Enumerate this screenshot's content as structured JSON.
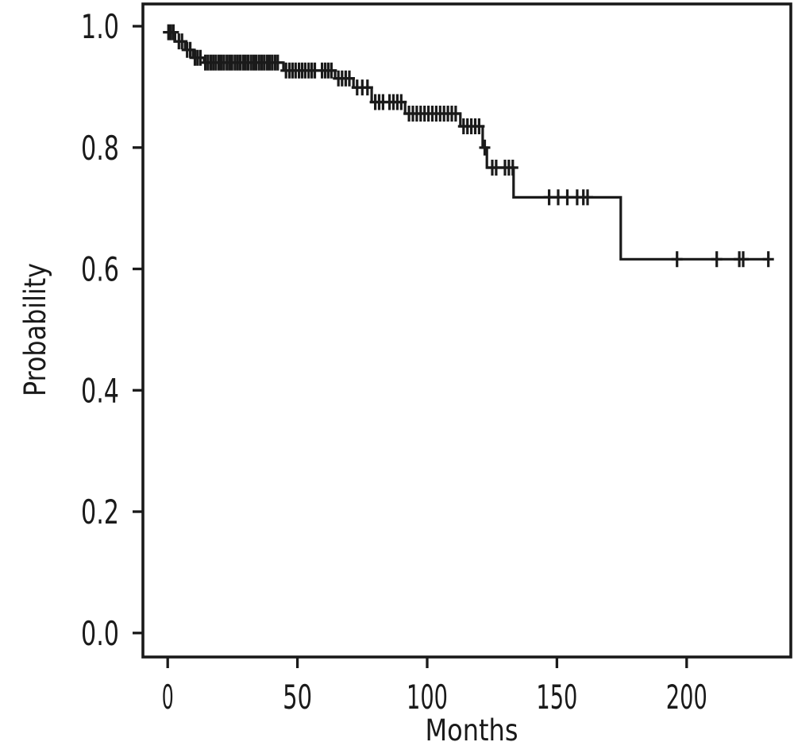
{
  "figure": {
    "background_color": "#ffffff",
    "line_color": "#1a1a1a"
  },
  "chart_data": {
    "type": "line",
    "subtype": "kaplan-meier-step-curve",
    "title": "",
    "xlabel": "Months",
    "ylabel": "Probability",
    "x_ticks": [
      "0",
      "50",
      "100",
      "150",
      "200"
    ],
    "x_tick_values": [
      0,
      50,
      100,
      150,
      200
    ],
    "y_ticks": [
      "0.0",
      "0.2",
      "0.4",
      "0.6",
      "0.8",
      "1.0"
    ],
    "y_tick_values": [
      0.0,
      0.2,
      0.4,
      0.6,
      0.8,
      1.0
    ],
    "xlim": [
      -9.5,
      240
    ],
    "ylim": [
      -0.04,
      1.04
    ],
    "grid": false,
    "legend": "none",
    "series": [
      {
        "name": "survival-probability",
        "steps": [
          [
            0,
            0.99
          ],
          [
            2.8,
            0.975
          ],
          [
            6.7,
            0.961
          ],
          [
            9.8,
            0.948
          ],
          [
            14,
            0.94
          ],
          [
            44.6,
            0.927
          ],
          [
            64.5,
            0.914
          ],
          [
            71.6,
            0.899
          ],
          [
            78.6,
            0.875
          ],
          [
            91.5,
            0.856
          ],
          [
            112.8,
            0.835
          ],
          [
            121.4,
            0.8
          ],
          [
            123,
            0.767
          ],
          [
            133.3,
            0.718
          ],
          [
            174.6,
            0.616
          ]
        ],
        "end_time": 231.5,
        "censor_groups": [
          {
            "p": 0.99,
            "t": [
              0.3,
              1.2,
              2.2
            ]
          },
          {
            "p": 0.975,
            "t": [
              4.3,
              5.5
            ]
          },
          {
            "p": 0.961,
            "t": [
              7.5,
              8.7
            ]
          },
          {
            "p": 0.948,
            "t": [
              10.5,
              11.5,
              12.6
            ]
          },
          {
            "p": 0.94,
            "t": [
              14.5,
              15.5,
              16.6,
              17.6,
              18.6,
              19.7,
              20.7,
              21.7,
              22.8,
              23.8,
              24.8,
              25.9,
              26.9,
              27.9,
              29,
              30,
              31,
              32.1,
              33.1,
              34.1,
              35.2,
              36.2,
              37.2,
              38.3,
              39.3,
              40.3,
              41.4,
              42.4
            ]
          },
          {
            "p": 0.927,
            "t": [
              45.6,
              46.9,
              48.1,
              49.3,
              50.6,
              51.8,
              53,
              54.3,
              55.5,
              56.7,
              59.5,
              60.7,
              61.9,
              63.1
            ]
          },
          {
            "p": 0.914,
            "t": [
              65.8,
              67.2,
              68.6,
              70
            ]
          },
          {
            "p": 0.899,
            "t": [
              73,
              75,
              77
            ]
          },
          {
            "p": 0.875,
            "t": [
              80,
              81.5,
              83,
              85.5,
              87,
              88.5,
              90
            ]
          },
          {
            "p": 0.856,
            "t": [
              93,
              94.5,
              96,
              97.5,
              99,
              100.5,
              102,
              103.5,
              105,
              106.5,
              108,
              109.5,
              111
            ]
          },
          {
            "p": 0.835,
            "t": [
              114,
              115.5,
              117,
              118.5,
              120
            ]
          },
          {
            "p": 0.8,
            "t": [
              122.2
            ]
          },
          {
            "p": 0.767,
            "t": [
              125.1,
              126.6,
              130,
              131.5,
              133
            ]
          },
          {
            "p": 0.718,
            "t": [
              147,
              150.5,
              154,
              157.8,
              160.2,
              161.8
            ]
          },
          {
            "p": 0.616,
            "t": [
              196.3,
              211.6,
              220.3,
              221.8,
              231.5
            ]
          }
        ]
      }
    ]
  }
}
